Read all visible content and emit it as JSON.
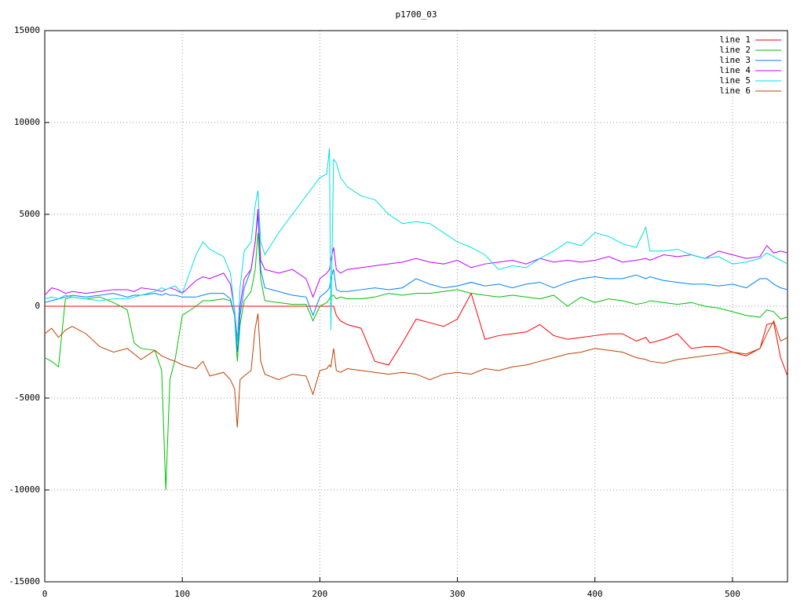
{
  "chart_data": {
    "type": "line",
    "title": "p1700_03",
    "x": [
      0,
      5,
      10,
      15,
      20,
      30,
      40,
      50,
      60,
      65,
      70,
      80,
      85,
      88,
      91,
      95,
      100,
      110,
      115,
      120,
      130,
      135,
      138,
      140,
      142,
      145,
      150,
      153,
      155,
      157,
      160,
      170,
      180,
      190,
      195,
      200,
      205,
      207,
      208,
      210,
      212,
      215,
      220,
      230,
      240,
      250,
      260,
      270,
      280,
      290,
      300,
      310,
      320,
      330,
      340,
      350,
      360,
      370,
      380,
      390,
      400,
      410,
      420,
      430,
      437,
      440,
      450,
      460,
      470,
      480,
      490,
      500,
      510,
      520,
      525,
      530,
      535,
      540
    ],
    "series": [
      {
        "name": "line 1",
        "color": "#ff0000",
        "values": [
          0,
          0,
          0,
          0,
          0,
          0,
          0,
          0,
          0,
          0,
          0,
          0,
          0,
          0,
          0,
          0,
          0,
          0,
          0,
          0,
          0,
          0,
          0,
          0,
          0,
          0,
          0,
          0,
          0,
          0,
          0,
          0,
          0,
          0,
          0,
          0,
          0,
          0,
          0,
          0,
          -500,
          -800,
          -1000,
          -1200,
          -3000,
          -3200,
          -2000,
          -700,
          -900,
          -1100,
          -700,
          700,
          -1800,
          -1600,
          -1500,
          -1400,
          -1000,
          -1600,
          -1800,
          -1700,
          -1600,
          -1500,
          -1500,
          -1900,
          -1700,
          -2000,
          -1800,
          -1500,
          -2300,
          -2200,
          -2200,
          -2500,
          -2700,
          -2300,
          -1000,
          -900,
          -2800,
          -3800
        ]
      },
      {
        "name": "line 2",
        "color": "#00c000",
        "values": [
          -2800,
          -3000,
          -3300,
          400,
          500,
          400,
          500,
          200,
          -200,
          -2000,
          -2300,
          -2400,
          -3500,
          -10000,
          -4000,
          -2800,
          -500,
          0,
          300,
          300,
          400,
          300,
          -500,
          -3000,
          -1000,
          300,
          800,
          2000,
          4000,
          1500,
          300,
          200,
          100,
          100,
          -800,
          0,
          200,
          400,
          500,
          600,
          400,
          500,
          400,
          400,
          500,
          700,
          600,
          700,
          700,
          800,
          900,
          700,
          600,
          500,
          600,
          500,
          400,
          600,
          0,
          500,
          200,
          400,
          300,
          100,
          200,
          300,
          200,
          100,
          200,
          0,
          -100,
          -300,
          -500,
          -600,
          -200,
          -300,
          -700,
          -600
        ]
      },
      {
        "name": "line 3",
        "color": "#0080ff",
        "values": [
          200,
          300,
          400,
          500,
          600,
          500,
          600,
          700,
          500,
          600,
          600,
          700,
          600,
          700,
          600,
          600,
          500,
          500,
          600,
          700,
          700,
          400,
          -500,
          -2500,
          -500,
          1000,
          2000,
          3500,
          5000,
          2000,
          1000,
          800,
          600,
          500,
          -500,
          500,
          800,
          1000,
          1500,
          2000,
          900,
          800,
          800,
          900,
          1000,
          900,
          1000,
          1500,
          1200,
          1000,
          1100,
          1300,
          1100,
          1200,
          1000,
          1200,
          1300,
          1000,
          1300,
          1500,
          1600,
          1500,
          1500,
          1700,
          1500,
          1600,
          1400,
          1300,
          1200,
          1200,
          1100,
          1200,
          1000,
          1500,
          1500,
          1200,
          1000,
          900
        ]
      },
      {
        "name": "line 4",
        "color": "#c000ff",
        "values": [
          600,
          1000,
          900,
          700,
          800,
          700,
          800,
          900,
          900,
          800,
          1000,
          900,
          800,
          900,
          1000,
          900,
          700,
          1400,
          1600,
          1500,
          1800,
          1200,
          -200,
          -1800,
          0,
          1500,
          2000,
          3500,
          5300,
          2500,
          2000,
          1800,
          2000,
          1500,
          500,
          1500,
          1800,
          2000,
          2500,
          3200,
          2000,
          1800,
          2000,
          2100,
          2200,
          2300,
          2400,
          2600,
          2400,
          2300,
          2500,
          2100,
          2300,
          2400,
          2500,
          2300,
          2600,
          2400,
          2500,
          2400,
          2500,
          2700,
          2400,
          2500,
          2600,
          2500,
          2800,
          2700,
          2800,
          2600,
          3000,
          2800,
          2600,
          2700,
          3300,
          2900,
          3000,
          2900
        ]
      },
      {
        "name": "line 5",
        "color": "#00e0e0",
        "values": [
          400,
          500,
          400,
          600,
          500,
          400,
          300,
          400,
          400,
          500,
          600,
          800,
          1000,
          900,
          1000,
          1100,
          700,
          2800,
          3500,
          3100,
          2700,
          1800,
          -300,
          -2000,
          1000,
          3000,
          3500,
          5500,
          6300,
          3500,
          2800,
          4000,
          5000,
          6000,
          6500,
          7000,
          7200,
          8600,
          -1300,
          8000,
          7800,
          7000,
          6500,
          6000,
          5800,
          5000,
          4500,
          4600,
          4500,
          4000,
          3500,
          3200,
          2800,
          2000,
          2200,
          2100,
          2600,
          3000,
          3500,
          3300,
          4000,
          3800,
          3400,
          3200,
          4300,
          3000,
          3000,
          3100,
          2800,
          2600,
          2700,
          2300,
          2400,
          2600,
          2900,
          2700,
          2500,
          2300
        ]
      },
      {
        "name": "line 6",
        "color": "#c04000",
        "values": [
          -1500,
          -1200,
          -1700,
          -1300,
          -1100,
          -1500,
          -2200,
          -2500,
          -2300,
          -2600,
          -2900,
          -2400,
          -2700,
          -2800,
          -2900,
          -3000,
          -3200,
          -3400,
          -3000,
          -3800,
          -3600,
          -4000,
          -4500,
          -6600,
          -4000,
          -3800,
          -3500,
          -1200,
          -400,
          -3000,
          -3700,
          -4000,
          -3700,
          -3800,
          -4800,
          -3500,
          -3400,
          -3200,
          -3300,
          -2300,
          -3500,
          -3600,
          -3400,
          -3500,
          -3600,
          -3700,
          -3600,
          -3700,
          -4000,
          -3700,
          -3600,
          -3700,
          -3400,
          -3500,
          -3300,
          -3200,
          -3000,
          -2800,
          -2600,
          -2500,
          -2300,
          -2400,
          -2500,
          -2800,
          -2900,
          -3000,
          -3100,
          -2900,
          -2800,
          -2700,
          -2600,
          -2500,
          -2600,
          -2300,
          -1500,
          -800,
          -1900,
          -1700
        ]
      }
    ],
    "xlim": [
      0,
      540
    ],
    "xticks": [
      0,
      100,
      200,
      300,
      400,
      500
    ],
    "ylim": [
      -15000,
      15000
    ],
    "yticks": [
      -15000,
      -10000,
      -5000,
      0,
      5000,
      10000,
      15000
    ],
    "grid": true,
    "legend": "top-right"
  }
}
